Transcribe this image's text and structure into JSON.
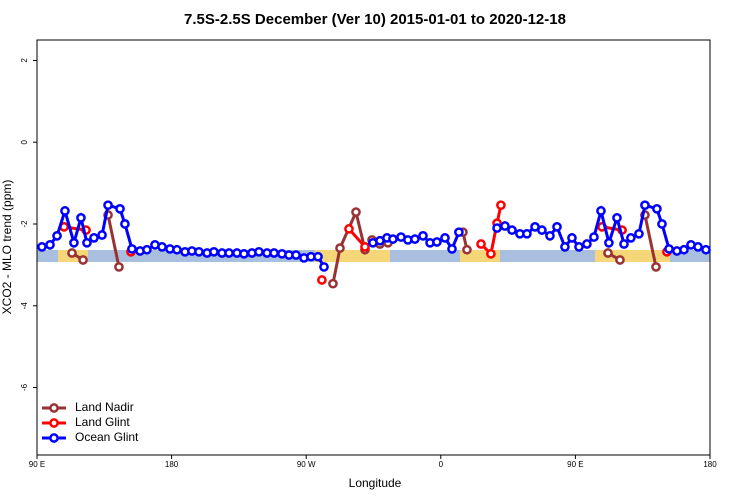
{
  "chart_data": {
    "type": "line",
    "title": "7.5S-2.5S December (Ver 10)   2015-01-01 to 2020-12-18",
    "xlabel": "Longitude",
    "ylabel": "XCO2 - MLO trend (ppm)",
    "xlim": [
      90,
      540
    ],
    "ylim": [
      -7.65,
      2.5
    ],
    "xticks": [
      {
        "value": 90,
        "label": "90 E"
      },
      {
        "value": 180,
        "label": "180"
      },
      {
        "value": 270,
        "label": "90 W"
      },
      {
        "value": 360,
        "label": "0"
      },
      {
        "value": 450,
        "label": "90 E"
      },
      {
        "value": 540,
        "label": "180"
      }
    ],
    "yticks": [
      -6,
      -4,
      -2,
      0,
      2
    ],
    "legend": "bottom-left",
    "series": [
      {
        "name": "Land Nadir",
        "color": "#993333",
        "x": [
          113.4,
          120.8,
          null,
          137.5,
          144.8,
          null,
          287.9,
          292.6,
          303.3,
          309.3,
          314.0,
          319.3,
          324.7,
          null,
          374.8,
          377.5,
          null,
          471.8,
          479.8,
          null,
          496.5,
          503.9
        ],
        "values": [
          -2.71,
          -2.88,
          null,
          -1.78,
          -3.05,
          null,
          -3.46,
          -2.59,
          -1.71,
          -2.63,
          -2.39,
          -2.49,
          -2.46,
          null,
          -2.2,
          -2.63,
          null,
          -2.71,
          -2.88,
          null,
          -1.78,
          -3.05
        ]
      },
      {
        "name": "Land Glint",
        "color": "#ff0000",
        "x": [
          108.1,
          122.8,
          null,
          152.8,
          null,
          280.5,
          null,
          298.6,
          309.3,
          null,
          386.9,
          393.5,
          397.6,
          400.2,
          null,
          467.8,
          481.2,
          null,
          511.2
        ],
        "values": [
          -2.07,
          -2.15,
          null,
          -2.68,
          null,
          -3.37,
          null,
          -2.12,
          -2.56,
          null,
          -2.49,
          -2.73,
          -1.98,
          -1.54,
          null,
          -2.07,
          -2.15,
          null,
          -2.68
        ]
      },
      {
        "name": "Ocean Glint",
        "color": "#0000ff",
        "x": [
          93.3,
          98.7,
          103.4,
          108.7,
          114.7,
          119.4,
          123.4,
          128.1,
          133.5,
          137.5,
          145.5,
          148.8,
          153.5,
          158.9,
          163.5,
          168.9,
          173.6,
          178.9,
          183.6,
          189.0,
          193.6,
          198.3,
          203.7,
          208.3,
          213.7,
          218.4,
          223.7,
          228.4,
          233.7,
          238.4,
          243.8,
          248.5,
          253.8,
          258.5,
          263.2,
          268.5,
          273.2,
          277.9,
          281.9,
          null,
          314.6,
          319.3,
          324.0,
          328.0,
          333.4,
          338.0,
          342.7,
          348.1,
          352.8,
          357.4,
          362.8,
          367.5,
          372.1,
          null,
          397.6,
          402.9,
          407.6,
          412.9,
          417.6,
          423.0,
          427.6,
          433.0,
          437.7,
          443.0,
          447.7,
          452.4,
          457.7,
          462.4,
          467.1,
          472.4,
          477.8,
          482.5,
          487.1,
          492.5,
          496.5,
          504.5,
          507.9,
          512.6,
          517.9,
          522.6,
          527.3,
          532.0,
          537.3
        ],
        "values": [
          -2.56,
          -2.51,
          -2.29,
          -1.68,
          -2.46,
          -1.85,
          -2.46,
          -2.34,
          -2.27,
          -1.54,
          -1.63,
          -2.0,
          -2.61,
          -2.66,
          -2.63,
          -2.51,
          -2.56,
          -2.61,
          -2.63,
          -2.68,
          -2.66,
          -2.68,
          -2.71,
          -2.68,
          -2.71,
          -2.71,
          -2.71,
          -2.73,
          -2.71,
          -2.68,
          -2.71,
          -2.71,
          -2.73,
          -2.76,
          -2.76,
          -2.83,
          -2.8,
          -2.8,
          -3.05,
          null,
          -2.46,
          -2.41,
          -2.34,
          -2.37,
          -2.32,
          -2.39,
          -2.37,
          -2.29,
          -2.46,
          -2.44,
          -2.34,
          -2.61,
          -2.2,
          null,
          -2.1,
          -2.05,
          -2.15,
          -2.24,
          -2.24,
          -2.07,
          -2.15,
          -2.29,
          -2.07,
          -2.56,
          -2.34,
          -2.56,
          -2.49,
          -2.32,
          -1.68,
          -2.46,
          -1.85,
          -2.49,
          -2.34,
          -2.24,
          -1.54,
          -1.63,
          -2.0,
          -2.61,
          -2.66,
          -2.63,
          -2.51,
          -2.56,
          -2.63
        ]
      }
    ]
  }
}
